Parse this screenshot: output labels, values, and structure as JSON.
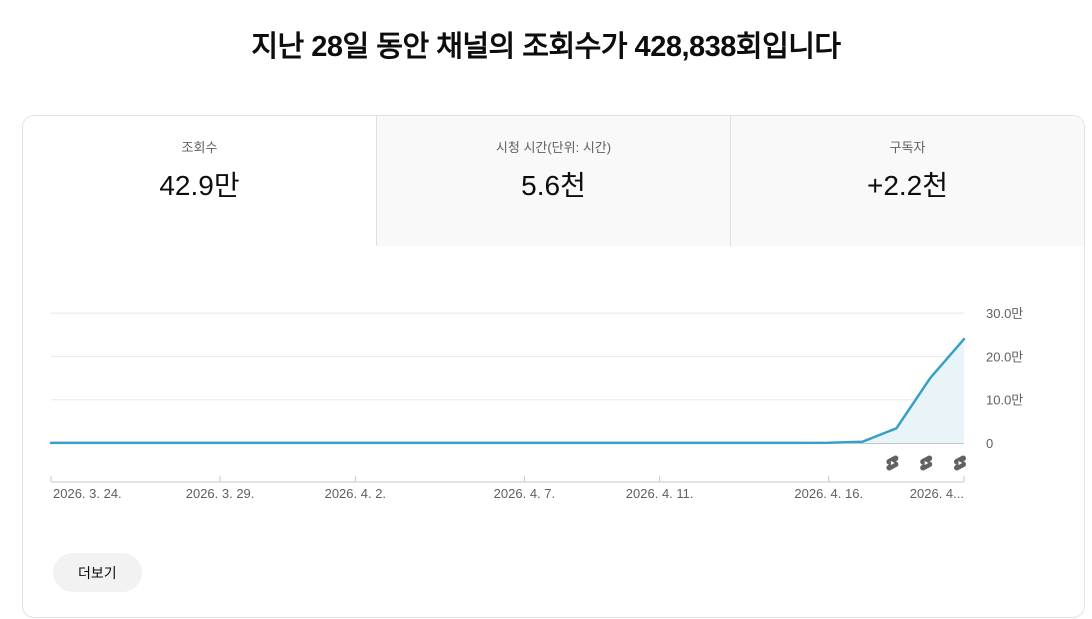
{
  "page": {
    "title": "지난 28일 동안 채널의 조회수가 428,838회입니다"
  },
  "tabs": [
    {
      "label": "조회수",
      "value": "42.9만",
      "selected": true
    },
    {
      "label": "시청 시간(단위: 시간)",
      "value": "5.6천",
      "selected": false
    },
    {
      "label": "구독자",
      "value": "+2.2천",
      "selected": false
    }
  ],
  "chart_data": {
    "type": "area",
    "title": "",
    "xlabel": "",
    "ylabel": "",
    "x": [
      "2026-03-24",
      "2026-03-25",
      "2026-03-26",
      "2026-03-27",
      "2026-03-28",
      "2026-03-29",
      "2026-03-30",
      "2026-03-31",
      "2026-04-01",
      "2026-04-02",
      "2026-04-03",
      "2026-04-04",
      "2026-04-05",
      "2026-04-06",
      "2026-04-07",
      "2026-04-08",
      "2026-04-09",
      "2026-04-10",
      "2026-04-11",
      "2026-04-12",
      "2026-04-13",
      "2026-04-14",
      "2026-04-15",
      "2026-04-16",
      "2026-04-17",
      "2026-04-18",
      "2026-04-19",
      "2026-04-20"
    ],
    "values": [
      200,
      200,
      200,
      200,
      200,
      200,
      200,
      200,
      200,
      200,
      200,
      200,
      200,
      200,
      200,
      200,
      200,
      200,
      200,
      200,
      200,
      200,
      200,
      400,
      3000,
      34000,
      150000,
      240000
    ],
    "ylim": [
      0,
      310000
    ],
    "y_axis_position": "right",
    "grid": true,
    "y_ticks": [
      {
        "value": 0,
        "label": "0"
      },
      {
        "value": 100000,
        "label": "10.0만"
      },
      {
        "value": 200000,
        "label": "20.0만"
      },
      {
        "value": 300000,
        "label": "30.0만"
      }
    ],
    "x_tick_labels": [
      {
        "day_index": 0,
        "label": "2026. 3. 24.",
        "align": "start"
      },
      {
        "day_index": 5,
        "label": "2026. 3. 29.",
        "align": "middle"
      },
      {
        "day_index": 9,
        "label": "2026. 4. 2.",
        "align": "middle"
      },
      {
        "day_index": 14,
        "label": "2026. 4. 7.",
        "align": "middle"
      },
      {
        "day_index": 18,
        "label": "2026. 4. 11.",
        "align": "middle"
      },
      {
        "day_index": 23,
        "label": "2026. 4. 16.",
        "align": "middle"
      },
      {
        "day_index": 27,
        "label": "2026. 4...",
        "align": "end"
      }
    ],
    "shorts_markers": {
      "icon": "shorts-icon",
      "day_indices": [
        25,
        26,
        27
      ]
    },
    "colors": {
      "line": "#38A0C4",
      "fill": "#E8F4F8",
      "grid": "#E8E8E8",
      "zero_line": "#8F8F8F",
      "axis": "#C8C8C8",
      "label": "#606060",
      "marker": "#5F6368"
    }
  },
  "more_button": {
    "label": "더보기"
  }
}
